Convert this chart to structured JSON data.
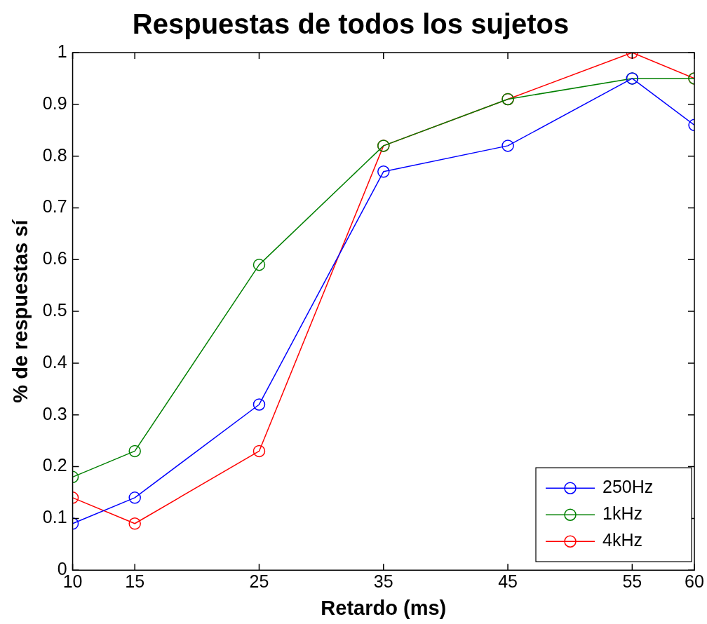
{
  "chart_data": {
    "type": "line",
    "title": "Respuestas de todos los sujetos",
    "xlabel": "Retardo (ms)",
    "ylabel": "% de respuestas sí",
    "x": [
      10,
      15,
      25,
      35,
      45,
      55,
      60
    ],
    "series": [
      {
        "name": "250Hz",
        "color": "#0000ff",
        "values": [
          0.09,
          0.14,
          0.32,
          0.77,
          0.82,
          0.95,
          0.86
        ]
      },
      {
        "name": "1kHz",
        "color": "#008000",
        "values": [
          0.18,
          0.23,
          0.59,
          0.82,
          0.91,
          0.95,
          0.95
        ]
      },
      {
        "name": "4kHz",
        "color": "#ff0000",
        "values": [
          0.14,
          0.09,
          0.23,
          0.82,
          0.91,
          1.0,
          0.95
        ]
      }
    ],
    "xlim": [
      10,
      60
    ],
    "xticks": [
      10,
      15,
      25,
      35,
      45,
      55,
      60
    ],
    "ylim": [
      0,
      1
    ],
    "yticks": [
      0,
      0.1,
      0.2,
      0.3,
      0.4,
      0.5,
      0.6,
      0.7,
      0.8,
      0.9,
      1
    ],
    "grid": false,
    "legend": "bottom right",
    "marker": "circle",
    "line_style": "solid"
  }
}
